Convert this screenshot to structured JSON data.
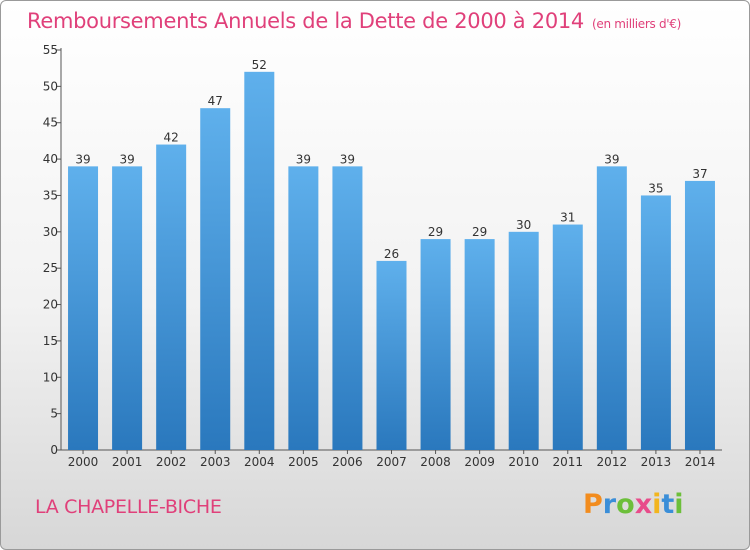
{
  "title": "Remboursements Annuels de la Dette de 2000 à 2014",
  "subtitle": "(en milliers d'€)",
  "commune": "LA CHAPELLE-BICHE",
  "logo": {
    "letters": [
      "P",
      "r",
      "o",
      "x",
      "i",
      "t",
      "i"
    ],
    "colors": [
      "#f28c1e",
      "#3a8ed8",
      "#6cbf3a",
      "#e84c8a",
      "#f2b51e",
      "#3a8ed8",
      "#6cbf3a"
    ]
  },
  "colors": {
    "bar_top": "#5fb0ec",
    "bar_bottom": "#2a78bd",
    "accent": "#e0407a"
  },
  "chart_data": {
    "type": "bar",
    "categories": [
      "2000",
      "2001",
      "2002",
      "2003",
      "2004",
      "2005",
      "2006",
      "2007",
      "2008",
      "2009",
      "2010",
      "2011",
      "2012",
      "2013",
      "2014"
    ],
    "values": [
      39,
      39,
      42,
      47,
      52,
      39,
      39,
      26,
      29,
      29,
      30,
      31,
      39,
      35,
      37
    ],
    "ylim": [
      0,
      55
    ],
    "yticks": [
      0,
      5,
      10,
      15,
      20,
      25,
      30,
      35,
      40,
      45,
      50,
      55
    ],
    "xlabel": "",
    "ylabel": "",
    "grid": false,
    "legend": "none"
  }
}
